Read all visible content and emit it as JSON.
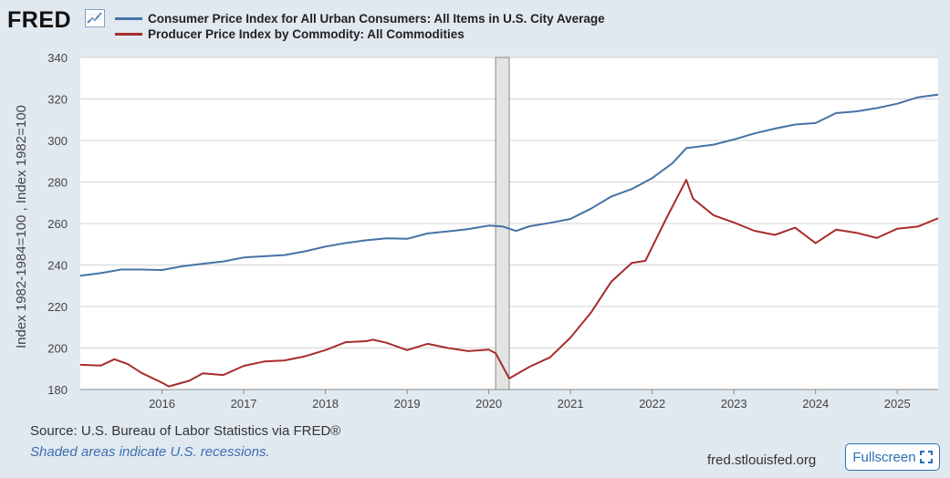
{
  "brand": {
    "logo_text": "FRED",
    "logo_icon": "chart-line-icon"
  },
  "footer": {
    "source": "Source: U.S. Bureau of Labor Statistics via FRED®",
    "note": "Shaded areas indicate U.S. recessions.",
    "site": "fred.stlouisfed.org",
    "fullscreen_label": "Fullscreen",
    "fullscreen_icon": "expand-icon"
  },
  "chart_data": {
    "type": "line",
    "title": "",
    "xlabel": "",
    "ylabel": "Index 1982-1984=100 , Index 1982=100",
    "ylim": [
      180,
      340
    ],
    "yticks": [
      180,
      200,
      220,
      240,
      260,
      280,
      300,
      320,
      340
    ],
    "xlim": [
      "2015-01-01",
      "2025-07-01"
    ],
    "xticks": [
      "2016",
      "2017",
      "2018",
      "2019",
      "2020",
      "2021",
      "2022",
      "2023",
      "2024",
      "2025"
    ],
    "grid": true,
    "legend_position": "top",
    "recessions": [
      {
        "start": "2020-02-01",
        "end": "2020-04-01"
      }
    ],
    "series": [
      {
        "name": "Consumer Price Index for All Urban Consumers: All Items in U.S. City Average",
        "color": "#4572a7",
        "points": [
          [
            "2015-01-01",
            234.8
          ],
          [
            "2015-04-01",
            236.1
          ],
          [
            "2015-07-01",
            237.8
          ],
          [
            "2015-10-01",
            237.8
          ],
          [
            "2016-01-01",
            237.6
          ],
          [
            "2016-04-01",
            239.4
          ],
          [
            "2016-07-01",
            240.6
          ],
          [
            "2016-10-01",
            241.7
          ],
          [
            "2017-01-01",
            243.6
          ],
          [
            "2017-04-01",
            244.2
          ],
          [
            "2017-07-01",
            244.8
          ],
          [
            "2017-10-01",
            246.6
          ],
          [
            "2018-01-01",
            248.9
          ],
          [
            "2018-04-01",
            250.6
          ],
          [
            "2018-07-01",
            251.9
          ],
          [
            "2018-10-01",
            252.9
          ],
          [
            "2019-01-01",
            252.6
          ],
          [
            "2019-04-01",
            255.2
          ],
          [
            "2019-07-01",
            256.2
          ],
          [
            "2019-10-01",
            257.3
          ],
          [
            "2020-01-01",
            259.0
          ],
          [
            "2020-03-01",
            258.6
          ],
          [
            "2020-05-01",
            256.4
          ],
          [
            "2020-07-01",
            258.7
          ],
          [
            "2020-10-01",
            260.3
          ],
          [
            "2021-01-01",
            262.2
          ],
          [
            "2021-04-01",
            267.1
          ],
          [
            "2021-07-01",
            273.0
          ],
          [
            "2021-10-01",
            276.6
          ],
          [
            "2022-01-01",
            281.9
          ],
          [
            "2022-04-01",
            289.1
          ],
          [
            "2022-06-01",
            296.3
          ],
          [
            "2022-10-01",
            298.0
          ],
          [
            "2023-01-01",
            300.5
          ],
          [
            "2023-04-01",
            303.4
          ],
          [
            "2023-07-01",
            305.7
          ],
          [
            "2023-10-01",
            307.7
          ],
          [
            "2024-01-01",
            308.4
          ],
          [
            "2024-04-01",
            313.2
          ],
          [
            "2024-07-01",
            314.0
          ],
          [
            "2024-10-01",
            315.6
          ],
          [
            "2025-01-01",
            317.7
          ],
          [
            "2025-04-01",
            320.8
          ],
          [
            "2025-07-01",
            322.1
          ]
        ]
      },
      {
        "name": "Producer Price Index by Commodity: All Commodities",
        "color": "#a82c2c",
        "points": [
          [
            "2015-01-01",
            191.9
          ],
          [
            "2015-04-01",
            191.5
          ],
          [
            "2015-06-01",
            194.6
          ],
          [
            "2015-08-01",
            192.2
          ],
          [
            "2015-10-01",
            188.0
          ],
          [
            "2016-01-01",
            183.3
          ],
          [
            "2016-02-01",
            181.5
          ],
          [
            "2016-05-01",
            184.2
          ],
          [
            "2016-07-01",
            187.8
          ],
          [
            "2016-10-01",
            187.0
          ],
          [
            "2017-01-01",
            191.4
          ],
          [
            "2017-04-01",
            193.5
          ],
          [
            "2017-07-01",
            194.0
          ],
          [
            "2017-10-01",
            196.0
          ],
          [
            "2018-01-01",
            199.0
          ],
          [
            "2018-04-01",
            202.8
          ],
          [
            "2018-07-01",
            203.3
          ],
          [
            "2018-08-01",
            204.0
          ],
          [
            "2018-10-01",
            202.5
          ],
          [
            "2019-01-01",
            199.0
          ],
          [
            "2019-04-01",
            202.0
          ],
          [
            "2019-07-01",
            200.0
          ],
          [
            "2019-10-01",
            198.5
          ],
          [
            "2020-01-01",
            199.2
          ],
          [
            "2020-02-01",
            197.5
          ],
          [
            "2020-04-01",
            185.3
          ],
          [
            "2020-07-01",
            191.0
          ],
          [
            "2020-10-01",
            195.5
          ],
          [
            "2021-01-01",
            205.0
          ],
          [
            "2021-04-01",
            217.0
          ],
          [
            "2021-07-01",
            232.0
          ],
          [
            "2021-10-01",
            241.0
          ],
          [
            "2021-12-01",
            242.0
          ],
          [
            "2022-03-01",
            262.0
          ],
          [
            "2022-06-01",
            281.0
          ],
          [
            "2022-07-01",
            272.0
          ],
          [
            "2022-10-01",
            264.0
          ],
          [
            "2023-01-01",
            260.5
          ],
          [
            "2023-04-01",
            256.5
          ],
          [
            "2023-07-01",
            254.5
          ],
          [
            "2023-10-01",
            258.0
          ],
          [
            "2024-01-01",
            250.5
          ],
          [
            "2024-04-01",
            257.0
          ],
          [
            "2024-07-01",
            255.5
          ],
          [
            "2024-10-01",
            253.0
          ],
          [
            "2025-01-01",
            257.5
          ],
          [
            "2025-04-01",
            258.5
          ],
          [
            "2025-07-01",
            262.5
          ]
        ]
      }
    ]
  }
}
